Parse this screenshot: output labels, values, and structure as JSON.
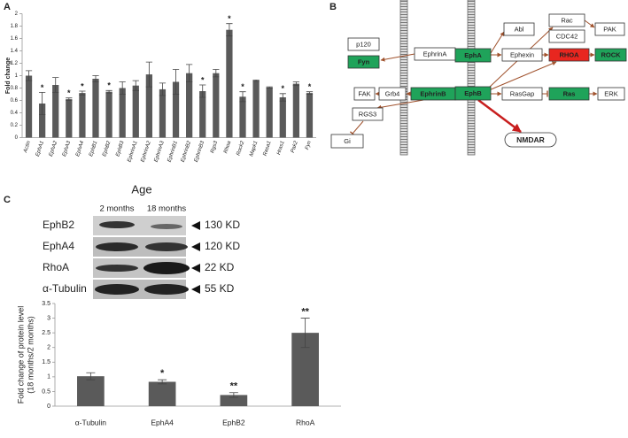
{
  "panels": {
    "a": "A",
    "b": "B",
    "c": "C"
  },
  "chart_data": [
    {
      "type": "bar",
      "y_label": "Fold change",
      "categories": [
        "Actin",
        "EphA1",
        "EphA2",
        "EphA3",
        "EphA4",
        "EphB1",
        "EphB2",
        "EphB3",
        "EphrinA1",
        "EphrinA2",
        "EphrinA3",
        "EphrinB1",
        "EphrinB2",
        "EphrinB3",
        "Rgs3",
        "Rhoa",
        "Rock2",
        "Mapk1",
        "Rasa1",
        "Hras1",
        "Pak2",
        "Fyn"
      ],
      "values": [
        1.0,
        0.55,
        0.85,
        0.62,
        0.72,
        0.95,
        0.74,
        0.8,
        0.84,
        1.02,
        0.78,
        0.9,
        1.04,
        0.75,
        1.04,
        1.74,
        0.66,
        0.92,
        0.81,
        0.65,
        0.87,
        0.72
      ],
      "errors": [
        0.08,
        0.18,
        0.12,
        0.02,
        0.03,
        0.05,
        0.02,
        0.1,
        0.08,
        0.2,
        0.1,
        0.2,
        0.14,
        0.1,
        0.06,
        0.1,
        0.08,
        0.01,
        0.01,
        0.06,
        0.03,
        0.02
      ],
      "annotations": [
        null,
        "*",
        null,
        "*",
        "*",
        null,
        "*",
        null,
        null,
        null,
        null,
        null,
        null,
        "*",
        null,
        "*",
        "*",
        null,
        null,
        "*",
        null,
        "*"
      ],
      "color": "#5a5a5a",
      "ylim": [
        0,
        2
      ],
      "yticks": [
        0,
        0.2,
        0.4,
        0.6,
        0.8,
        1,
        1.2,
        1.4,
        1.6,
        1.8,
        2
      ]
    },
    {
      "type": "bar",
      "y_label": [
        "Fold change of protein level",
        "(18 months/2 months)"
      ],
      "categories": [
        "α-Tubulin",
        "EphA4",
        "EphB2",
        "RhoA"
      ],
      "values": [
        1.02,
        0.83,
        0.38,
        2.5
      ],
      "errors": [
        0.12,
        0.07,
        0.08,
        0.5
      ],
      "annotations": [
        null,
        "*",
        "**",
        "**"
      ],
      "color": "#5a5a5a",
      "ylim": [
        0,
        3.5
      ],
      "yticks": [
        0,
        0.5,
        1,
        1.5,
        2,
        2.5,
        3,
        3.5
      ]
    }
  ],
  "diagram": {
    "nodes": [
      {
        "label": "p120",
        "color": "#ffffff"
      },
      {
        "label": "Fyn",
        "color": "#1fa35a"
      },
      {
        "label": "EphrinA",
        "color": "#ffffff"
      },
      {
        "label": "EphA",
        "color": "#1fa35a"
      },
      {
        "label": "Abl",
        "color": "#ffffff"
      },
      {
        "label": "Ephexin",
        "color": "#ffffff"
      },
      {
        "label": "Rac",
        "color": "#ffffff"
      },
      {
        "label": "CDC42",
        "color": "#ffffff"
      },
      {
        "label": "RHOA",
        "color": "#e8261f"
      },
      {
        "label": "PAK",
        "color": "#ffffff"
      },
      {
        "label": "ROCK",
        "color": "#1fa35a"
      },
      {
        "label": "FAK",
        "color": "#ffffff"
      },
      {
        "label": "Grb4",
        "color": "#ffffff"
      },
      {
        "label": "EphrinB",
        "color": "#1fa35a"
      },
      {
        "label": "EphB",
        "color": "#1fa35a"
      },
      {
        "label": "RasGap",
        "color": "#ffffff"
      },
      {
        "label": "Ras",
        "color": "#1fa35a"
      },
      {
        "label": "ERK",
        "color": "#ffffff"
      },
      {
        "label": "RGS3",
        "color": "#ffffff"
      },
      {
        "label": "Gi",
        "color": "#ffffff"
      },
      {
        "label": "NMDAR",
        "color": "#ffffff",
        "text_color": "#c81e1e"
      }
    ]
  },
  "blot": {
    "title": "Age",
    "columns": [
      "2 months",
      "18 months"
    ],
    "rows": [
      {
        "protein": "EphB2",
        "size": "130 KD"
      },
      {
        "protein": "EphA4",
        "size": "120 KD"
      },
      {
        "protein": "RhoA",
        "size": "22 KD"
      },
      {
        "protein": "α-Tubulin",
        "size": "55 KD"
      }
    ]
  }
}
